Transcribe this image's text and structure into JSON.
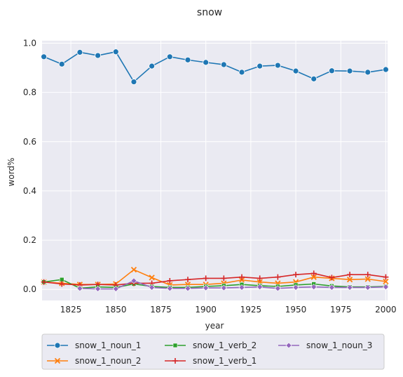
{
  "chart_data": {
    "type": "line",
    "title": "snow",
    "xlabel": "year",
    "ylabel": "word%",
    "xlim": [
      1809,
      2001
    ],
    "ylim": [
      -0.045,
      1.01
    ],
    "xticks": [
      1825,
      1850,
      1875,
      1900,
      1925,
      1950,
      1975,
      2000
    ],
    "yticks": [
      0.0,
      0.2,
      0.4,
      0.6,
      0.8,
      1.0
    ],
    "grid": true,
    "legend_position": "bottom",
    "x": [
      1810,
      1820,
      1830,
      1840,
      1850,
      1860,
      1870,
      1880,
      1890,
      1900,
      1910,
      1920,
      1930,
      1940,
      1950,
      1960,
      1970,
      1980,
      1990,
      2000
    ],
    "series": [
      {
        "name": "snow_1_noun_1",
        "color": "#1f77b4",
        "marker": "circle",
        "values": [
          0.945,
          0.915,
          0.963,
          0.95,
          0.965,
          0.843,
          0.907,
          0.945,
          0.932,
          0.922,
          0.913,
          0.882,
          0.907,
          0.91,
          0.887,
          0.855,
          0.888,
          0.887,
          0.882,
          0.893
        ]
      },
      {
        "name": "snow_1_noun_2",
        "color": "#ff7f0e",
        "marker": "x",
        "values": [
          0.03,
          0.025,
          0.02,
          0.02,
          0.022,
          0.08,
          0.048,
          0.018,
          0.02,
          0.02,
          0.025,
          0.038,
          0.03,
          0.025,
          0.03,
          0.05,
          0.045,
          0.04,
          0.042,
          0.032
        ]
      },
      {
        "name": "snow_1_verb_2",
        "color": "#2ca02c",
        "marker": "square",
        "values": [
          0.03,
          0.04,
          0.005,
          0.01,
          0.008,
          0.022,
          0.012,
          0.008,
          0.008,
          0.012,
          0.015,
          0.02,
          0.015,
          0.012,
          0.018,
          0.022,
          0.014,
          0.01,
          0.01,
          0.012
        ]
      },
      {
        "name": "snow_1_verb_1",
        "color": "#d62728",
        "marker": "plus",
        "values": [
          0.03,
          0.022,
          0.018,
          0.02,
          0.018,
          0.025,
          0.025,
          0.035,
          0.04,
          0.045,
          0.045,
          0.05,
          0.045,
          0.05,
          0.06,
          0.065,
          0.048,
          0.06,
          0.06,
          0.05
        ]
      },
      {
        "name": "snow_1_noun_3",
        "color": "#9467bd",
        "marker": "diamond",
        "values": [
          null,
          null,
          0.004,
          0.002,
          0.002,
          0.035,
          0.008,
          0.004,
          0.004,
          0.006,
          0.006,
          0.008,
          0.01,
          0.004,
          0.008,
          0.01,
          0.008,
          0.008,
          0.008,
          0.01
        ]
      }
    ]
  }
}
